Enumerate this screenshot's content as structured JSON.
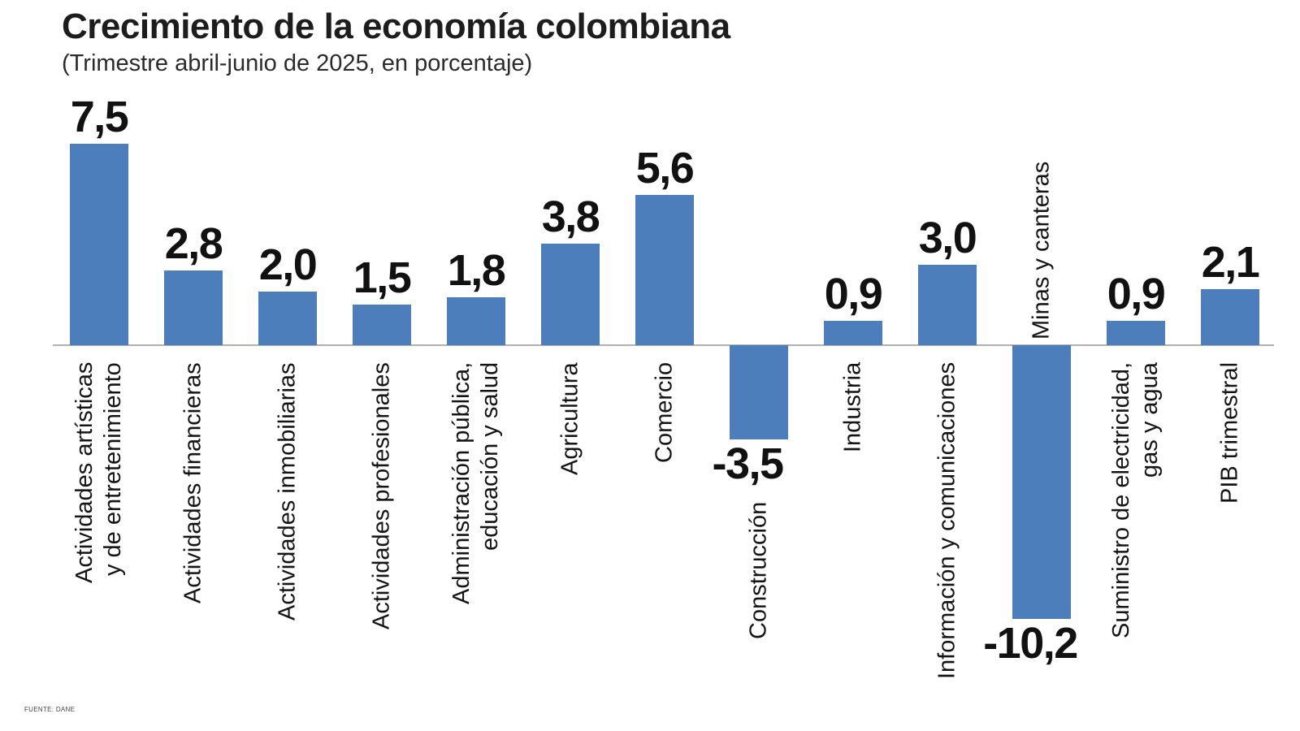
{
  "header": {
    "title": "Crecimiento de la economía colombiana",
    "subtitle": "(Trimestre abril-junio de 2025, en porcentaje)"
  },
  "footer": {
    "source": "FUENTE: DANE"
  },
  "chart_data": {
    "type": "bar",
    "title": "Crecimiento de la economía colombiana",
    "subtitle": "(Trimestre abril-junio de 2025, en porcentaje)",
    "unit": "%",
    "categories": [
      "Actividades artísticas y de entretenimiento",
      "Actividades financieras",
      "Actividades inmobiliarias",
      "Actividades profesionales",
      "Administración pública, educación y salud",
      "Agricultura",
      "Comercio",
      "Construcción",
      "Industria",
      "Información y comunicaciones",
      "Minas y canteras",
      "Suministro de electricidad, gas y agua",
      "PIB trimestral"
    ],
    "values": [
      7.5,
      2.8,
      2.0,
      1.5,
      1.8,
      3.8,
      5.6,
      -3.5,
      0.9,
      3.0,
      -10.2,
      0.9,
      2.1
    ],
    "value_labels": [
      "7,5",
      "2,8",
      "2,0",
      "1,5",
      "1,8",
      "3,8",
      "5,6",
      "-3,5",
      "0,9",
      "3,0",
      "-10,2",
      "0,9",
      "2,1"
    ],
    "category_label_lines": [
      [
        "Actividades artísticas",
        "y de entretenimiento"
      ],
      [
        "Actividades financieras"
      ],
      [
        "Actividades inmobiliarias"
      ],
      [
        "Actividades profesionales"
      ],
      [
        "Administración pública,",
        "educación y salud"
      ],
      [
        "Agricultura"
      ],
      [
        "Comercio"
      ],
      [
        "Construcción"
      ],
      [
        "Industria"
      ],
      [
        "Información y comunicaciones"
      ],
      [
        "Minas y canteras"
      ],
      [
        "Suministro de electricidad,",
        "gas y agua"
      ],
      [
        "PIB trimestral"
      ]
    ],
    "category_label_placement": [
      "below",
      "below",
      "below",
      "below",
      "below",
      "below",
      "below",
      "below-value",
      "below",
      "below",
      "above",
      "below",
      "below"
    ],
    "bar_color": "#4d7ebc",
    "axis_color": "#b0b0b0",
    "text_color": "#111111",
    "ylim": [
      -10.2,
      7.5
    ],
    "baseline": 0,
    "grid": false,
    "legend": false
  }
}
